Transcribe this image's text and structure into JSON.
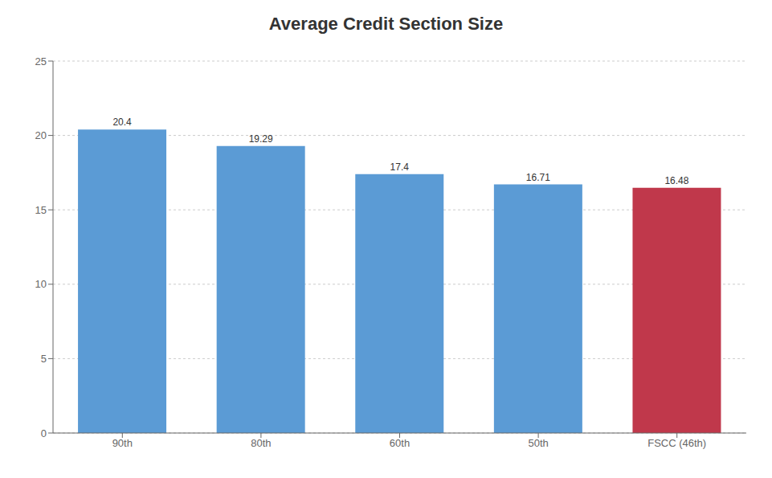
{
  "chart_data": {
    "type": "bar",
    "title": "Average Credit Section Size",
    "categories": [
      "90th",
      "80th",
      "60th",
      "50th",
      "FSCC (46th)"
    ],
    "values": [
      20.4,
      19.29,
      17.4,
      16.71,
      16.48
    ],
    "colors": [
      "#5b9bd5",
      "#5b9bd5",
      "#5b9bd5",
      "#5b9bd5",
      "#c0384b"
    ],
    "ylim": [
      0,
      25
    ],
    "yticks": [
      0,
      5,
      10,
      15,
      20,
      25
    ],
    "grid": true,
    "data_labels": true
  }
}
